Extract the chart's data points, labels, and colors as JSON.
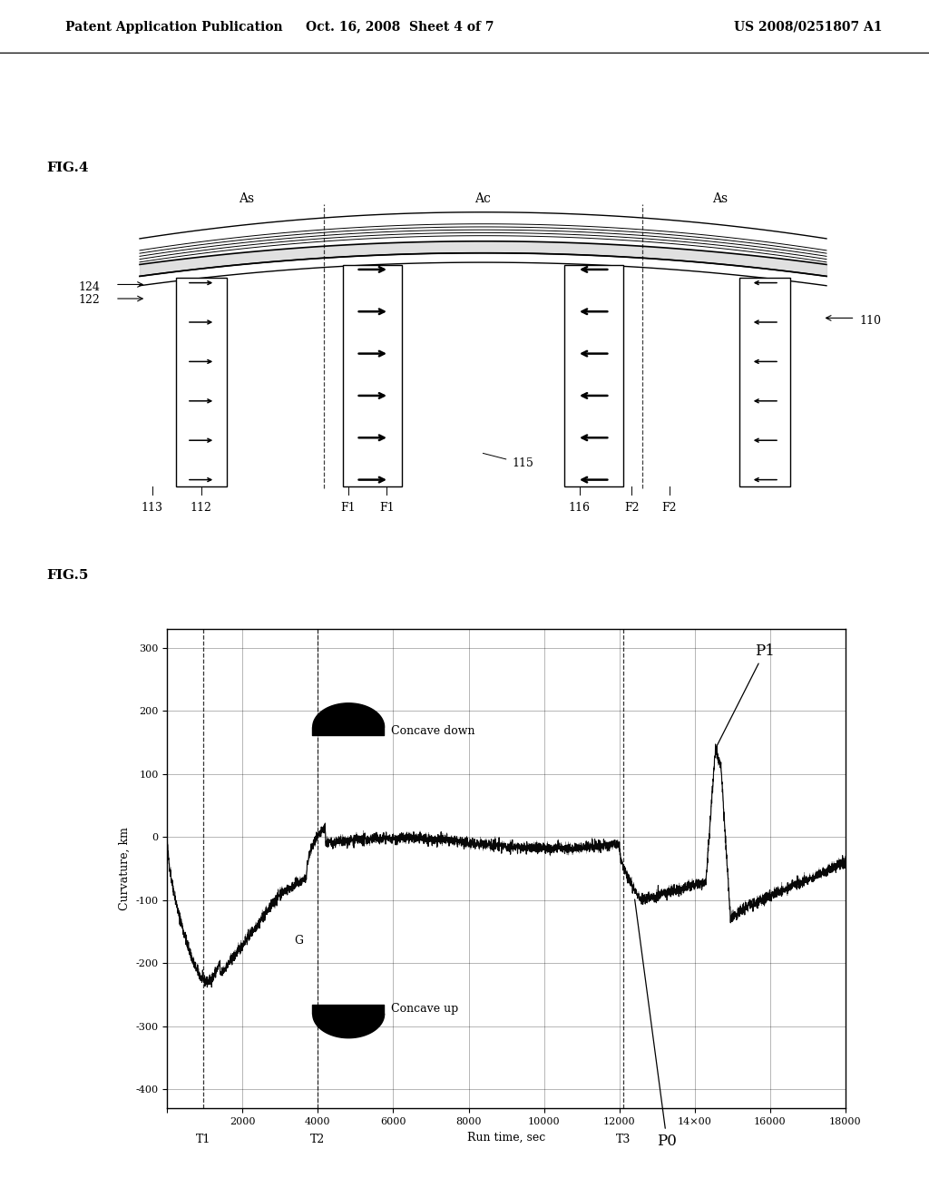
{
  "header_left": "Patent Application Publication",
  "header_mid": "Oct. 16, 2008  Sheet 4 of 7",
  "header_right": "US 2008/0251807 A1",
  "fig4_label": "FIG.4",
  "fig5_label": "FIG.5",
  "fig5_xlabel": "Run time, sec",
  "fig5_ylabel": "Curvature, km",
  "background_color": "#ffffff",
  "concave_down_label": "Concave down",
  "concave_up_label": "Concave up"
}
